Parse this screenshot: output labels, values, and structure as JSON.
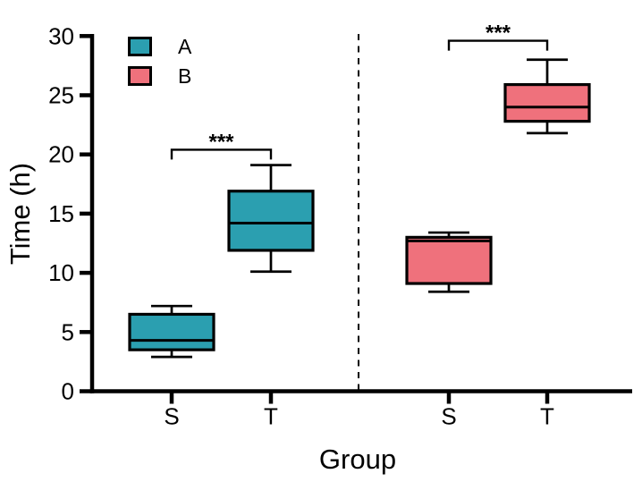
{
  "chart_data": {
    "type": "box",
    "title": "",
    "xlabel": "Group",
    "ylabel": "Time (h)",
    "ylim": [
      0,
      30
    ],
    "yticks": [
      0,
      5,
      10,
      15,
      20,
      25,
      30
    ],
    "categories": [
      "S",
      "T",
      "S",
      "T"
    ],
    "grid": false,
    "legend_position": "top-left-inside",
    "axis_color": "#000000",
    "background_color": "#ffffff",
    "series": [
      {
        "name": "A",
        "color": "#2B9FB0",
        "boxes": [
          {
            "category": "S",
            "min": 2.9,
            "q1": 3.5,
            "median": 4.3,
            "q3": 6.5,
            "max": 7.2
          },
          {
            "category": "T",
            "min": 10.1,
            "q1": 11.9,
            "median": 14.2,
            "q3": 16.9,
            "max": 19.1
          }
        ]
      },
      {
        "name": "B",
        "color": "#EF717C",
        "boxes": [
          {
            "category": "S",
            "min": 8.4,
            "q1": 9.1,
            "median": 12.7,
            "q3": 13.0,
            "max": 13.4
          },
          {
            "category": "T",
            "min": 21.8,
            "q1": 22.8,
            "median": 24.0,
            "q3": 25.9,
            "max": 28.0
          }
        ]
      }
    ],
    "annotations": [
      {
        "type": "significance-bracket",
        "label": "***",
        "series": "A",
        "from": "S",
        "to": "T",
        "y": 20.4
      },
      {
        "type": "significance-bracket",
        "label": "***",
        "series": "B",
        "from": "S",
        "to": "T",
        "y": 29.6
      }
    ],
    "divider": {
      "style": "dashed",
      "between": [
        "A",
        "B"
      ]
    }
  }
}
